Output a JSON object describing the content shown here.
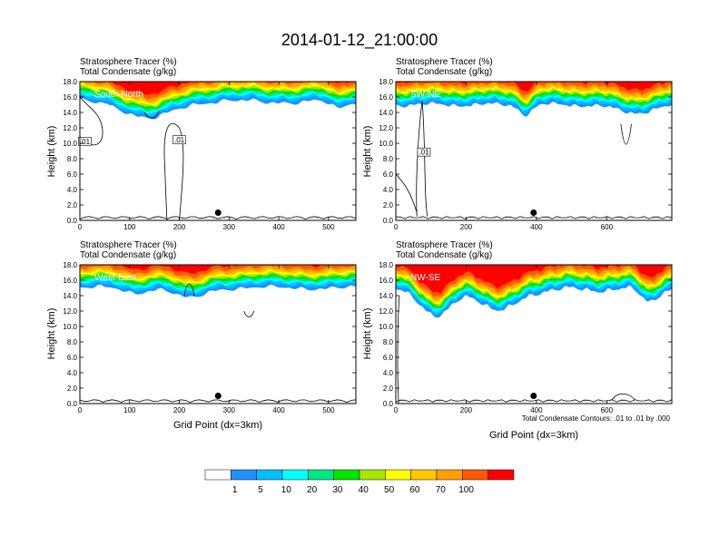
{
  "title": "2014-01-12_21:00:00",
  "panel_header": {
    "line1": "Stratosphere Tracer   (%)",
    "line2": "Total Condensate   (g/kg)"
  },
  "ylabel": "Height (km)",
  "xlabel": "Grid Point (dx=3km)",
  "contour_note": "Total Condensate Contours: .01 to .01 by .000",
  "contour_label": ".01",
  "chart_data": {
    "type": "heatmap",
    "colorbar": {
      "labels": [
        "1",
        "5",
        "10",
        "20",
        "30",
        "40",
        "50",
        "60",
        "70",
        "100"
      ],
      "colors": [
        "#ffffff",
        "#1e90ff",
        "#00bfff",
        "#00ffff",
        "#00e685",
        "#00e600",
        "#a6e600",
        "#ffff00",
        "#ffc800",
        "#ffa000",
        "#ff5a00",
        "#ff0000"
      ]
    },
    "panels": [
      {
        "label": "South-North",
        "xlim": [
          0,
          555
        ],
        "ylim": [
          0,
          18
        ],
        "xticks": [
          "0",
          "100",
          "200",
          "300",
          "400",
          "500"
        ],
        "xtick_vals": [
          0,
          100,
          200,
          300,
          400,
          500
        ],
        "yticks": [
          "0.0",
          "2.0",
          "4.0",
          "6.0",
          "8.0",
          "10.0",
          "12.0",
          "14.0",
          "16.0",
          "18.0"
        ],
        "marker_x": 278,
        "marker_y": 1.0
      },
      {
        "label": "SW-NE",
        "xlim": [
          0,
          785
        ],
        "ylim": [
          0,
          18
        ],
        "xticks": [
          "0",
          "200",
          "400",
          "600"
        ],
        "xtick_vals": [
          0,
          200,
          400,
          600
        ],
        "yticks": [
          "0.0",
          "2.0",
          "4.0",
          "6.0",
          "8.0",
          "10.0",
          "12.0",
          "14.0",
          "16.0",
          "18.0"
        ],
        "marker_x": 392,
        "marker_y": 1.0
      },
      {
        "label": "West-East",
        "xlim": [
          0,
          555
        ],
        "ylim": [
          0,
          18
        ],
        "xticks": [
          "0",
          "100",
          "200",
          "300",
          "400",
          "500"
        ],
        "xtick_vals": [
          0,
          100,
          200,
          300,
          400,
          500
        ],
        "yticks": [
          "0.0",
          "2.0",
          "4.0",
          "6.0",
          "8.0",
          "10.0",
          "12.0",
          "14.0",
          "16.0",
          "18.0"
        ],
        "marker_x": 278,
        "marker_y": 1.0
      },
      {
        "label": "NW-SE",
        "xlim": [
          0,
          785
        ],
        "ylim": [
          0,
          18
        ],
        "xticks": [
          "0",
          "200",
          "400",
          "600"
        ],
        "xtick_vals": [
          0,
          200,
          400,
          600
        ],
        "yticks": [
          "0.0",
          "2.0",
          "4.0",
          "6.0",
          "8.0",
          "10.0",
          "12.0",
          "14.0",
          "16.0",
          "18.0"
        ],
        "marker_x": 392,
        "marker_y": 1.0
      }
    ]
  }
}
